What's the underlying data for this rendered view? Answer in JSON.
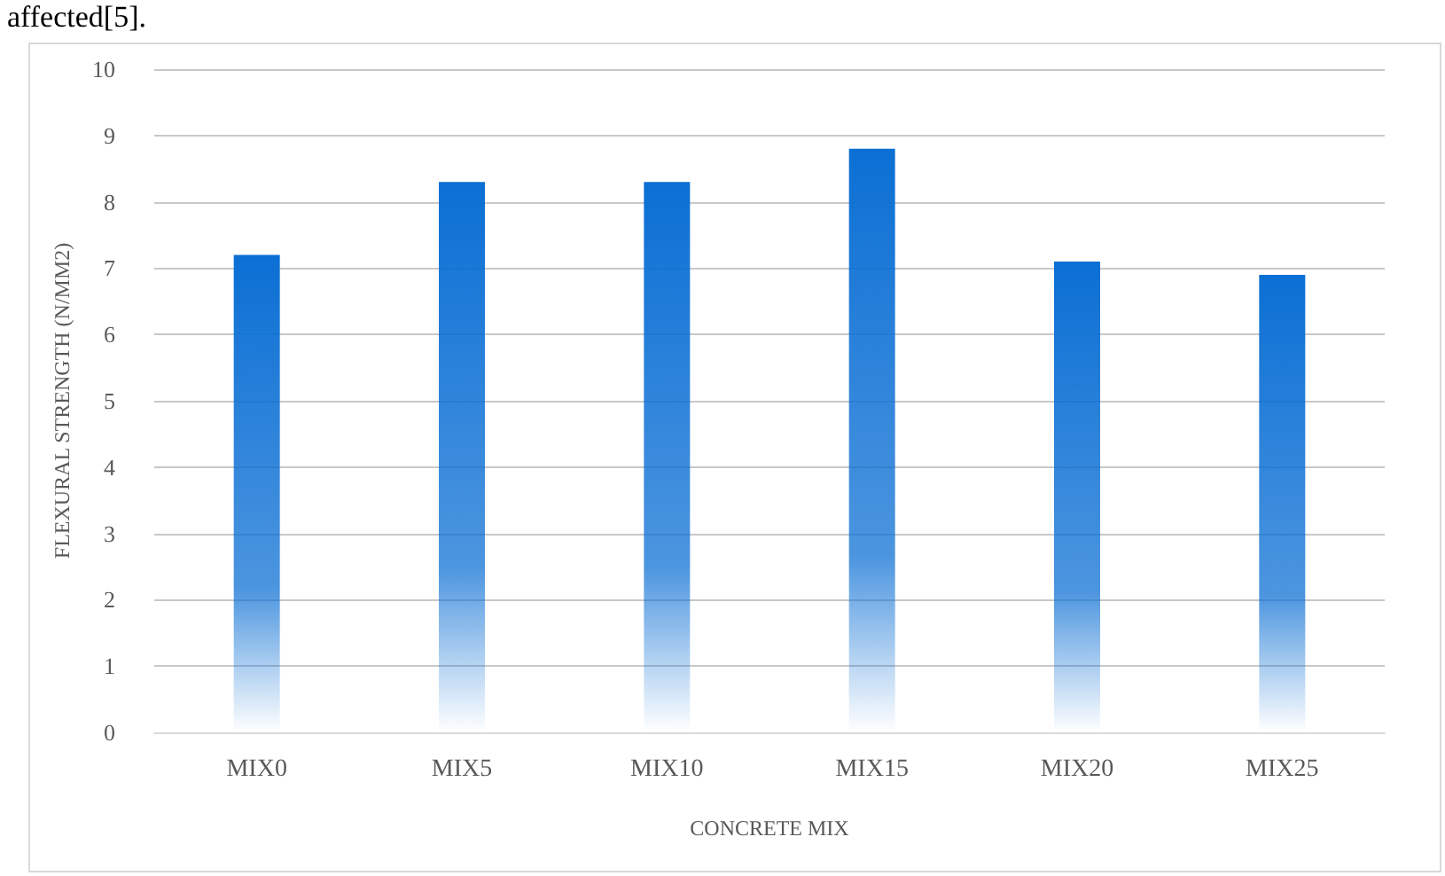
{
  "chart_data": {
    "type": "bar",
    "xlabel": "CONCRETE MIX",
    "ylabel": "FLEXURAL STRENGTH (N/MM2)",
    "annotations": [
      "affected[5]."
    ],
    "categories": [
      "MIX0",
      "MIX5",
      "MIX10",
      "MIX15",
      "MIX20",
      "MIX25"
    ],
    "values": [
      7.2,
      8.3,
      8.3,
      8.8,
      7.1,
      6.9
    ],
    "color": "#0b6fd4",
    "ylim": [
      0,
      10
    ],
    "yticks": [
      0,
      1,
      2,
      3,
      4,
      5,
      6,
      7,
      8,
      9,
      10
    ],
    "grid": "y"
  }
}
